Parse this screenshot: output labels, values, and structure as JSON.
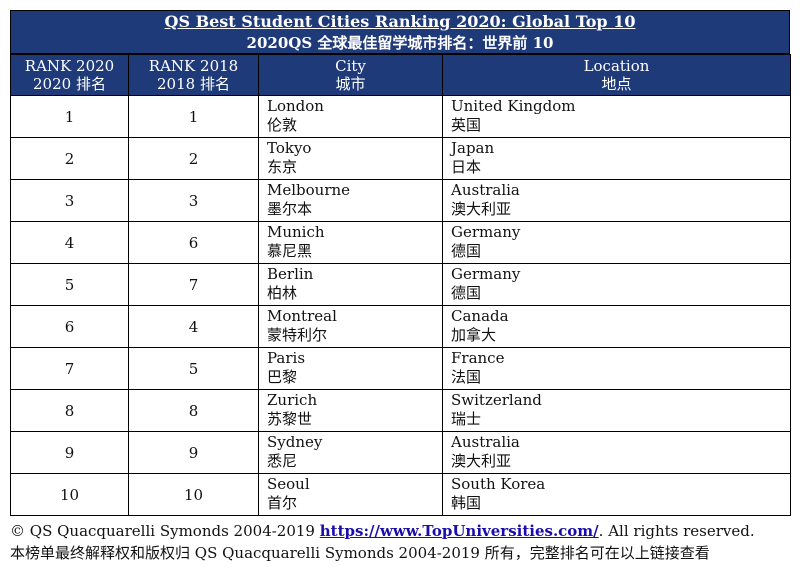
{
  "title": {
    "line1": "QS Best Student Cities Ranking 2020: Global Top 10",
    "line2": "2020QS 全球最佳留学城市排名：世界前 10"
  },
  "headers": [
    {
      "en": "RANK 2020",
      "zh": "2020 排名"
    },
    {
      "en": "RANK 2018",
      "zh": "2018 排名"
    },
    {
      "en": "City",
      "zh": "城市"
    },
    {
      "en": "Location",
      "zh": "地点"
    }
  ],
  "rows": [
    {
      "rank2020": "1",
      "rank2018": "1",
      "city_en": "London",
      "city_zh": "伦敦",
      "loc_en": "United Kingdom",
      "loc_zh": "英国"
    },
    {
      "rank2020": "2",
      "rank2018": "2",
      "city_en": "Tokyo",
      "city_zh": "东京",
      "loc_en": "Japan",
      "loc_zh": "日本"
    },
    {
      "rank2020": "3",
      "rank2018": "3",
      "city_en": "Melbourne",
      "city_zh": "墨尔本",
      "loc_en": "Australia",
      "loc_zh": "澳大利亚"
    },
    {
      "rank2020": "4",
      "rank2018": "6",
      "city_en": "Munich",
      "city_zh": "慕尼黑",
      "loc_en": "Germany",
      "loc_zh": "德国"
    },
    {
      "rank2020": "5",
      "rank2018": "7",
      "city_en": "Berlin",
      "city_zh": "柏林",
      "loc_en": "Germany",
      "loc_zh": "德国"
    },
    {
      "rank2020": "6",
      "rank2018": "4",
      "city_en": "Montreal",
      "city_zh": "蒙特利尔",
      "loc_en": "Canada",
      "loc_zh": "加拿大"
    },
    {
      "rank2020": "7",
      "rank2018": "5",
      "city_en": "Paris",
      "city_zh": "巴黎",
      "loc_en": "France",
      "loc_zh": "法国"
    },
    {
      "rank2020": "8",
      "rank2018": "8",
      "city_en": "Zurich",
      "city_zh": "苏黎世",
      "loc_en": "Switzerland",
      "loc_zh": "瑞士"
    },
    {
      "rank2020": "9",
      "rank2018": "9",
      "city_en": "Sydney",
      "city_zh": "悉尼",
      "loc_en": "Australia",
      "loc_zh": "澳大利亚"
    },
    {
      "rank2020": "10",
      "rank2018": "10",
      "city_en": "Seoul",
      "city_zh": "首尔",
      "loc_en": "South Korea",
      "loc_zh": "韩国"
    }
  ],
  "footer": {
    "copyright": "© QS Quacquarelli Symonds 2004-2019",
    "link": "https://www.TopUniversities.com/",
    "rights": ". All rights reserved.",
    "line2": "本榜单最终解释权和版权归 QS Quacquarelli Symonds 2004-2019 所有，完整排名可在以上链接查看"
  },
  "colors": {
    "header_bg": "#1f3a78",
    "link": "#1a0dab"
  }
}
